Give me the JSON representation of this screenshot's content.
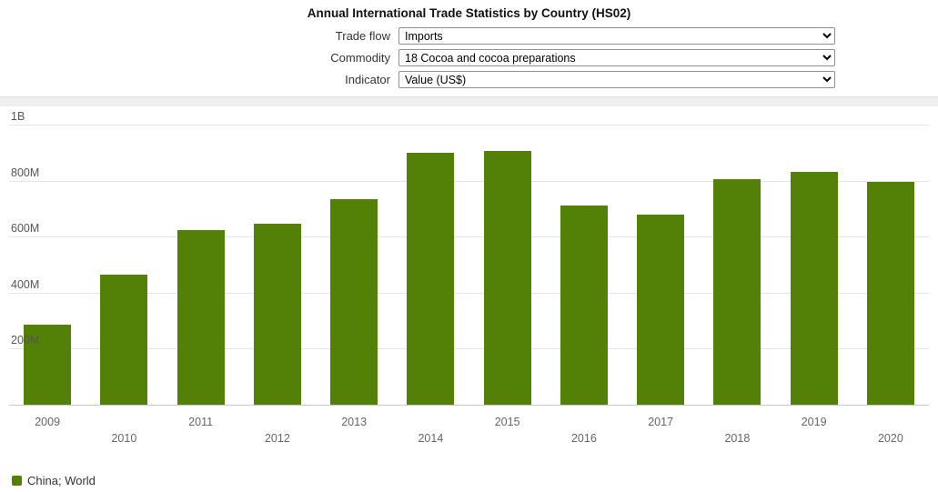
{
  "title": "Annual International Trade Statistics by Country (HS02)",
  "controls": [
    {
      "label": "Trade flow",
      "value": "Imports"
    },
    {
      "label": "Commodity",
      "value": "18 Cocoa and cocoa preparations"
    },
    {
      "label": "Indicator",
      "value": "Value (US$)"
    }
  ],
  "chart_data": {
    "type": "bar",
    "title": "Annual International Trade Statistics by Country (HS02)",
    "categories": [
      "2009",
      "2010",
      "2011",
      "2012",
      "2013",
      "2014",
      "2015",
      "2016",
      "2017",
      "2018",
      "2019",
      "2020"
    ],
    "series": [
      {
        "name": "China; World",
        "values": [
          285000000,
          465000000,
          625000000,
          645000000,
          735000000,
          900000000,
          905000000,
          710000000,
          680000000,
          805000000,
          830000000,
          795000000
        ]
      }
    ],
    "xlabel": "",
    "ylabel": "",
    "ylim": [
      0,
      1000000000
    ],
    "yticks": [
      {
        "value": 200000000,
        "label": "200M"
      },
      {
        "value": 400000000,
        "label": "400M"
      },
      {
        "value": 600000000,
        "label": "600M"
      },
      {
        "value": 800000000,
        "label": "800M"
      },
      {
        "value": 1000000000,
        "label": "1B"
      }
    ],
    "grid": true,
    "legend_position": "bottom-left",
    "bar_color": "#538006"
  },
  "legend": {
    "items": [
      {
        "label": "China; World",
        "color": "#538006"
      }
    ]
  }
}
